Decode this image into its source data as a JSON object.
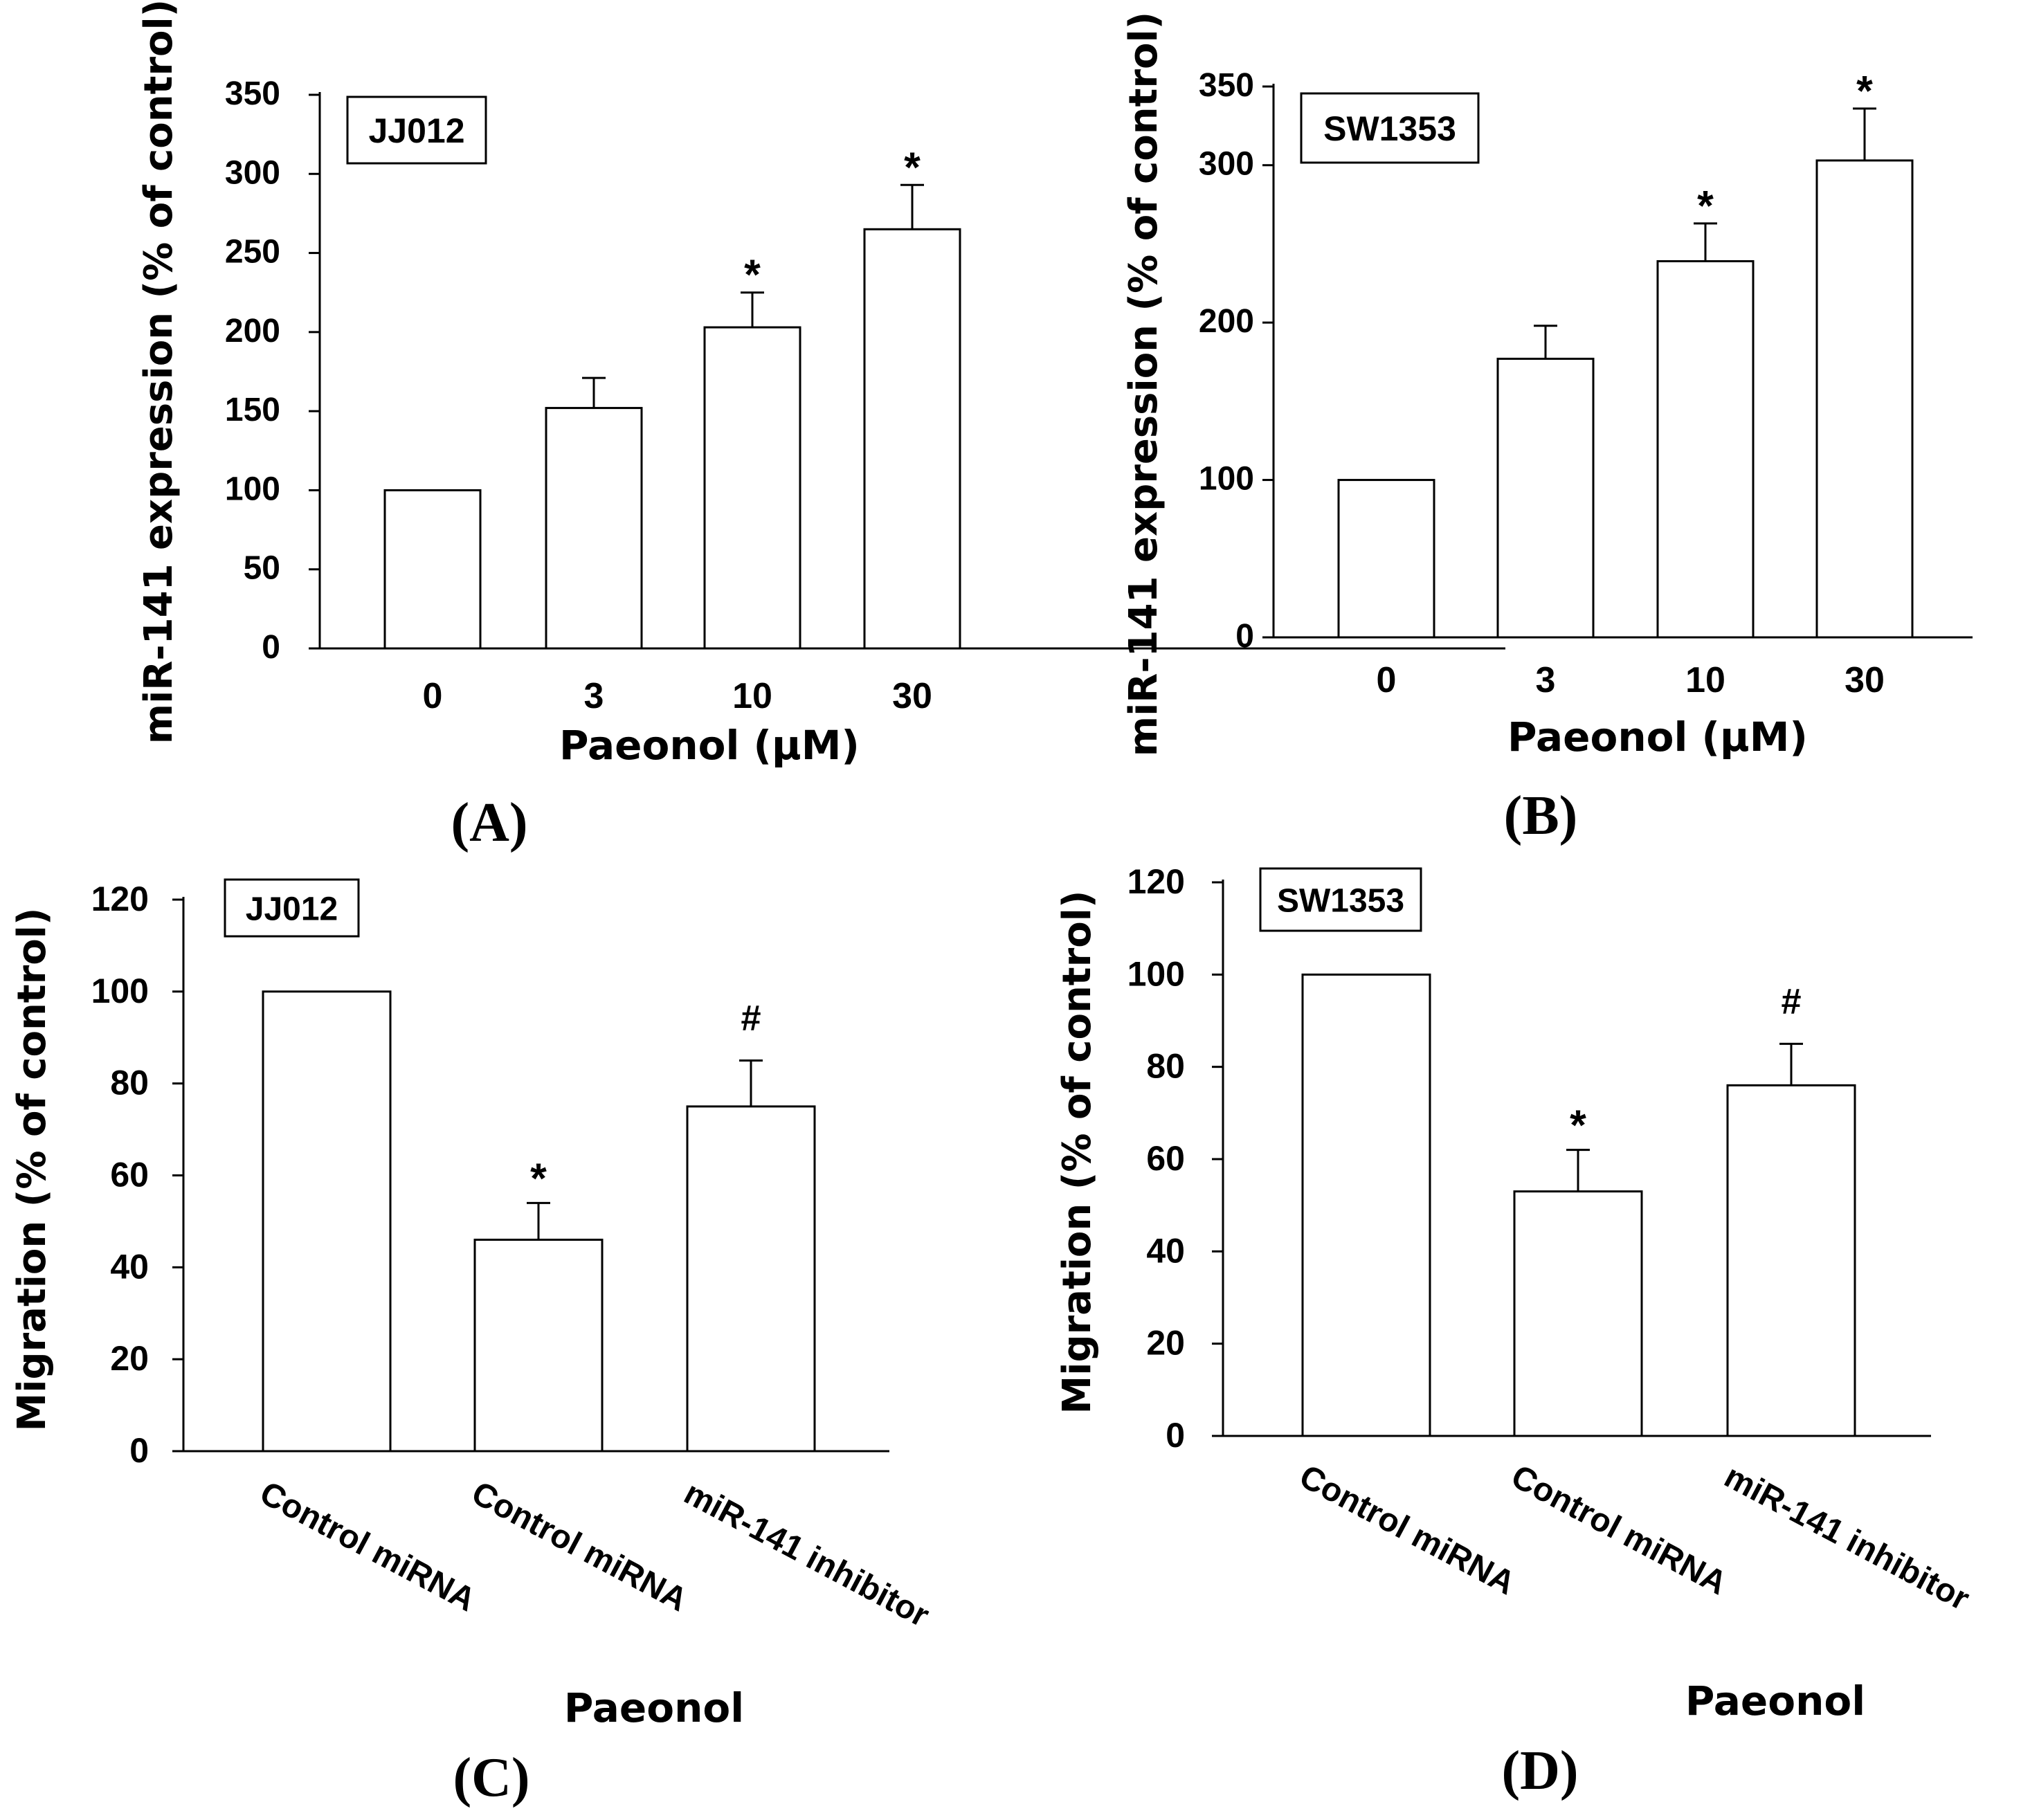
{
  "chart_data": [
    {
      "panel": "(A)",
      "type": "bar",
      "cell_line": "JJ012",
      "ylabel": "miR-141 expression (% of control)",
      "xlabel": "Paeonol (μM)",
      "ylim": [
        0,
        350
      ],
      "yticks": [
        "0",
        "50",
        "100",
        "150",
        "200",
        "250",
        "300",
        "350"
      ],
      "categories": [
        "0",
        "3",
        "10",
        "30"
      ],
      "values": [
        100,
        152,
        203,
        265
      ],
      "errors": [
        0,
        19,
        22,
        28
      ],
      "significance": [
        "",
        "",
        "*",
        "*"
      ]
    },
    {
      "panel": "(B)",
      "type": "bar",
      "cell_line": "SW1353",
      "ylabel": "miR-141 expression (% of control)",
      "xlabel": "Paeonol (μM)",
      "ylim": [
        0,
        350
      ],
      "yticks": [
        "0",
        "100",
        "200",
        "300",
        "350"
      ],
      "categories": [
        "0",
        "3",
        "10",
        "30"
      ],
      "values": [
        100,
        177,
        239,
        303
      ],
      "errors": [
        0,
        21,
        24,
        33
      ],
      "significance": [
        "",
        "",
        "*",
        "*"
      ]
    },
    {
      "panel": "(C)",
      "type": "bar",
      "cell_line": "JJ012",
      "ylabel": "Migration (% of control)",
      "xlabel": "Paeonol",
      "ylim": [
        0,
        120
      ],
      "yticks": [
        "0",
        "20",
        "40",
        "60",
        "80",
        "100",
        "120"
      ],
      "categories": [
        "Control miRNA",
        "Control miRNA",
        "miR-141 inhibitor"
      ],
      "values": [
        100,
        46,
        75
      ],
      "errors": [
        0,
        8,
        10
      ],
      "significance": [
        "",
        "*",
        "#"
      ]
    },
    {
      "panel": "(D)",
      "type": "bar",
      "cell_line": "SW1353",
      "ylabel": "Migration (% of control)",
      "xlabel": "Paeonol",
      "ylim": [
        0,
        120
      ],
      "yticks": [
        "0",
        "20",
        "40",
        "60",
        "80",
        "100",
        "120"
      ],
      "categories": [
        "Control miRNA",
        "Control miRNA",
        "miR-141 inhibitor"
      ],
      "values": [
        100,
        53,
        76
      ],
      "errors": [
        0,
        9,
        9
      ],
      "significance": [
        "",
        "*",
        "#"
      ]
    }
  ]
}
